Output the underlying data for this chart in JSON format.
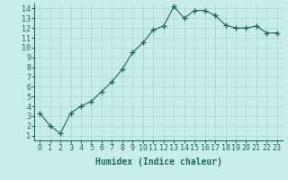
{
  "x": [
    0,
    1,
    2,
    3,
    4,
    5,
    6,
    7,
    8,
    9,
    10,
    11,
    12,
    13,
    14,
    15,
    16,
    17,
    18,
    19,
    20,
    21,
    22,
    23
  ],
  "y": [
    3.3,
    2.0,
    1.2,
    3.3,
    4.0,
    4.5,
    5.5,
    6.5,
    7.8,
    9.5,
    10.5,
    11.8,
    12.2,
    14.2,
    13.0,
    13.8,
    13.8,
    13.3,
    12.3,
    12.0,
    12.0,
    12.2,
    11.5,
    11.5
  ],
  "line_color": "#1a6b5a",
  "marker": "+",
  "marker_size": 4,
  "marker_lw": 1.0,
  "bg_color": "#c8ede8",
  "grid_color": "#b0d8d0",
  "xlabel": "Humidex (Indice chaleur)",
  "xlabel_fontsize": 7,
  "tick_fontsize": 6,
  "xlim": [
    -0.5,
    23.5
  ],
  "ylim": [
    0.5,
    14.5
  ],
  "yticks": [
    1,
    2,
    3,
    4,
    5,
    6,
    7,
    8,
    9,
    10,
    11,
    12,
    13,
    14
  ],
  "xticks": [
    0,
    1,
    2,
    3,
    4,
    5,
    6,
    7,
    8,
    9,
    10,
    11,
    12,
    13,
    14,
    15,
    16,
    17,
    18,
    19,
    20,
    21,
    22,
    23
  ]
}
